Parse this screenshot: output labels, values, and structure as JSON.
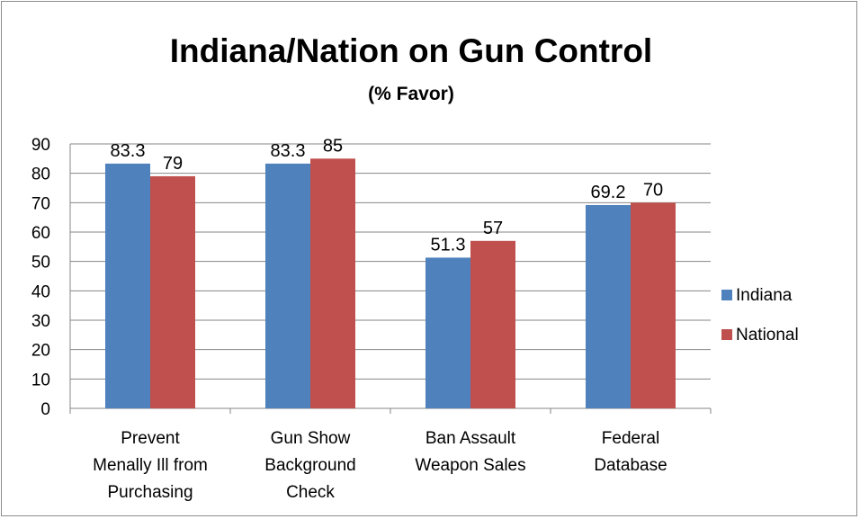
{
  "chart_data": {
    "type": "bar",
    "title": "Indiana/Nation on Gun Control",
    "subtitle": "(% Favor)",
    "xlabel": "",
    "ylabel": "",
    "ylim": [
      0,
      90
    ],
    "yticks": [
      0,
      10,
      20,
      30,
      40,
      50,
      60,
      70,
      80,
      90
    ],
    "grid": true,
    "legend_position": "right",
    "categories": [
      [
        "Prevent",
        "Menally Ill from",
        "Purchasing"
      ],
      [
        "Gun Show",
        "Background",
        "Check"
      ],
      [
        "Ban Assault",
        "Weapon Sales"
      ],
      [
        "Federal",
        "Database"
      ]
    ],
    "series": [
      {
        "name": "Indiana",
        "color": "#4f81bd",
        "values": [
          83.3,
          83.3,
          51.3,
          69.2
        ]
      },
      {
        "name": "National",
        "color": "#c0504d",
        "values": [
          79,
          85,
          57,
          70
        ]
      }
    ]
  }
}
